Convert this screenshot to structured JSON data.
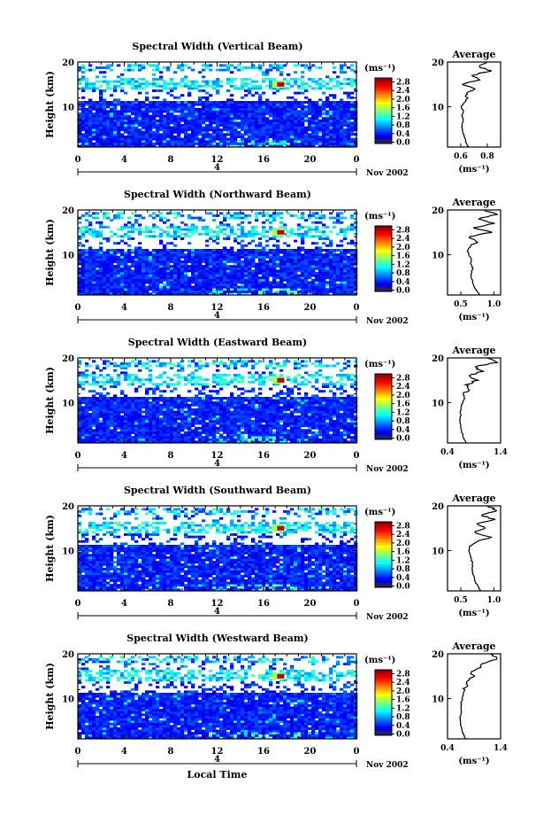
{
  "chart_data": [
    {
      "type": "heatmap",
      "title": "Spectral Width (Vertical Beam)",
      "ylabel": "Height (km)",
      "xlim": [
        0,
        24
      ],
      "ylim": [
        1,
        20
      ],
      "x_ticks": [
        "0",
        "4",
        "8",
        "12",
        "16",
        "20",
        "0"
      ],
      "y_ticks": [
        "20",
        "10"
      ],
      "day_marker": "4",
      "date_label": "Nov 2002",
      "colorbar": {
        "unit": "(ms⁻¹)",
        "ticks": [
          "2.8",
          "2.4",
          "2.0",
          "1.6",
          "1.2",
          "0.8",
          "0.4",
          "0.0"
        ]
      },
      "profile": {
        "title": "Average",
        "xlabel": "(ms⁻¹)",
        "x_ticks": [
          "0.6",
          "0.8"
        ],
        "xlim": [
          0.5,
          0.9
        ],
        "y_ticks": [
          "20",
          "10"
        ],
        "heights": [
          1,
          2,
          3,
          4,
          5,
          6,
          7,
          8,
          9,
          10,
          11,
          12,
          13,
          14,
          15,
          16,
          17,
          18,
          19,
          20
        ],
        "values": [
          0.66,
          0.64,
          0.63,
          0.62,
          0.61,
          0.61,
          0.62,
          0.61,
          0.62,
          0.6,
          0.63,
          0.65,
          0.63,
          0.72,
          0.6,
          0.75,
          0.68,
          0.82,
          0.74,
          0.8
        ]
      }
    },
    {
      "type": "heatmap",
      "title": "Spectral Width (Northward Beam)",
      "ylabel": "Height (km)",
      "xlim": [
        0,
        24
      ],
      "ylim": [
        1,
        20
      ],
      "x_ticks": [
        "0",
        "4",
        "8",
        "12",
        "16",
        "20",
        "0"
      ],
      "y_ticks": [
        "20",
        "10"
      ],
      "day_marker": "4",
      "date_label": "Nov 2002",
      "colorbar": {
        "unit": "(ms⁻¹)",
        "ticks": [
          "2.8",
          "2.4",
          "2.0",
          "1.6",
          "1.2",
          "0.8",
          "0.4",
          "0.0"
        ]
      },
      "profile": {
        "title": "Average",
        "xlabel": "(ms⁻¹)",
        "x_ticks": [
          "0.5",
          "1.0"
        ],
        "xlim": [
          0.3,
          1.1
        ],
        "y_ticks": [
          "20",
          "10"
        ],
        "heights": [
          1,
          2,
          3,
          4,
          5,
          6,
          7,
          8,
          9,
          10,
          11,
          12,
          13,
          14,
          15,
          16,
          17,
          18,
          19,
          20
        ],
        "values": [
          0.78,
          0.74,
          0.7,
          0.68,
          0.66,
          0.66,
          0.68,
          0.65,
          0.66,
          0.62,
          0.6,
          0.65,
          0.75,
          0.62,
          0.95,
          0.7,
          1.0,
          0.75,
          1.05,
          0.85
        ]
      }
    },
    {
      "type": "heatmap",
      "title": "Spectral Width (Eastward Beam)",
      "ylabel": "Height (km)",
      "xlim": [
        0,
        24
      ],
      "ylim": [
        1,
        20
      ],
      "x_ticks": [
        "0",
        "4",
        "8",
        "12",
        "16",
        "20",
        "0"
      ],
      "y_ticks": [
        "20",
        "10"
      ],
      "day_marker": "4",
      "date_label": "Nov 2002",
      "colorbar": {
        "unit": "(ms⁻¹)",
        "ticks": [
          "2.8",
          "2.4",
          "2.0",
          "1.6",
          "1.2",
          "0.8",
          "0.4",
          "0.0"
        ]
      },
      "profile": {
        "title": "Average",
        "xlabel": "(ms⁻¹)",
        "x_ticks": [
          "0.4",
          "1.4"
        ],
        "xlim": [
          0.4,
          1.4
        ],
        "y_ticks": [
          "20",
          "10"
        ],
        "heights": [
          1,
          2,
          3,
          4,
          5,
          6,
          7,
          8,
          9,
          10,
          11,
          12,
          13,
          14,
          15,
          16,
          17,
          18,
          19,
          20
        ],
        "values": [
          0.75,
          0.7,
          0.68,
          0.66,
          0.64,
          0.63,
          0.65,
          0.64,
          0.66,
          0.68,
          0.72,
          0.7,
          0.8,
          0.76,
          0.95,
          0.82,
          1.05,
          0.9,
          1.35,
          1.15
        ]
      }
    },
    {
      "type": "heatmap",
      "title": "Spectral Width (Southward Beam)",
      "ylabel": "Height (km)",
      "xlim": [
        0,
        24
      ],
      "ylim": [
        1,
        20
      ],
      "x_ticks": [
        "0",
        "4",
        "8",
        "12",
        "16",
        "20",
        "0"
      ],
      "y_ticks": [
        "20",
        "10"
      ],
      "day_marker": "4",
      "date_label": "Nov 2002",
      "colorbar": {
        "unit": "(ms⁻¹)",
        "ticks": [
          "2.8",
          "2.4",
          "2.0",
          "1.6",
          "1.2",
          "0.8",
          "0.4",
          "0.0"
        ]
      },
      "profile": {
        "title": "Average",
        "xlabel": "(ms⁻¹)",
        "x_ticks": [
          "0.5",
          "1.0"
        ],
        "xlim": [
          0.3,
          1.1
        ],
        "y_ticks": [
          "20",
          "10"
        ],
        "heights": [
          1,
          2,
          3,
          4,
          5,
          6,
          7,
          8,
          9,
          10,
          11,
          12,
          13,
          14,
          15,
          16,
          17,
          18,
          19,
          20
        ],
        "values": [
          0.8,
          0.76,
          0.72,
          0.7,
          0.68,
          0.67,
          0.68,
          0.66,
          0.65,
          0.62,
          0.64,
          0.75,
          0.95,
          0.7,
          0.85,
          0.75,
          1.0,
          0.8,
          1.05,
          0.9
        ]
      }
    },
    {
      "type": "heatmap",
      "title": "Spectral Width (Westward Beam)",
      "ylabel": "Height (km)",
      "xlim": [
        0,
        24
      ],
      "ylim": [
        1,
        20
      ],
      "x_ticks": [
        "0",
        "4",
        "8",
        "12",
        "16",
        "20",
        "0"
      ],
      "y_ticks": [
        "20",
        "10"
      ],
      "day_marker": "4",
      "date_label": "Nov 2002",
      "xlabel": "Local Time",
      "colorbar": {
        "unit": "(ms⁻¹)",
        "ticks": [
          "2.8",
          "2.4",
          "2.0",
          "1.6",
          "1.2",
          "0.8",
          "0.4",
          "0.0"
        ]
      },
      "profile": {
        "title": "Average",
        "xlabel": "(ms⁻¹)",
        "x_ticks": [
          "0.4",
          "1.4"
        ],
        "xlim": [
          0.4,
          1.4
        ],
        "y_ticks": [
          "20",
          "10"
        ],
        "heights": [
          1,
          2,
          3,
          4,
          5,
          6,
          7,
          8,
          9,
          10,
          11,
          12,
          13,
          14,
          15,
          16,
          17,
          18,
          19,
          20
        ],
        "values": [
          0.74,
          0.7,
          0.67,
          0.65,
          0.64,
          0.64,
          0.66,
          0.65,
          0.66,
          0.68,
          0.7,
          0.72,
          0.75,
          0.8,
          0.9,
          0.85,
          1.0,
          1.1,
          1.35,
          1.2
        ]
      }
    }
  ]
}
